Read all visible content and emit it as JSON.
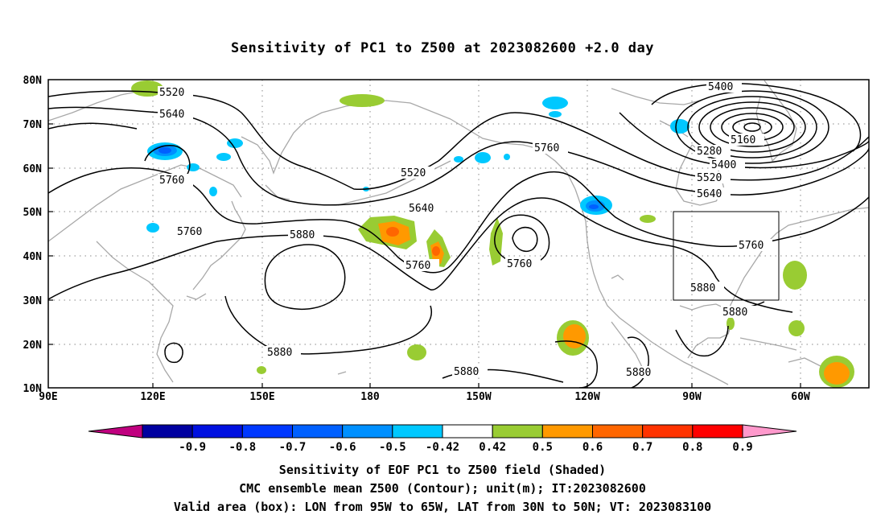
{
  "title": "Sensitivity of PC1 to Z500 at 2023082600 +2.0 day",
  "x_ticks": [
    "90E",
    "120E",
    "150E",
    "180",
    "150W",
    "120W",
    "90W",
    "60W"
  ],
  "y_ticks": [
    "80N",
    "70N",
    "60N",
    "50N",
    "40N",
    "30N",
    "20N",
    "10N"
  ],
  "contour_labels": [
    "5400",
    "5520",
    "5640",
    "5760",
    "5880",
    "5160",
    "5280"
  ],
  "colorbar": {
    "labels": [
      "-0.9",
      "-0.8",
      "-0.7",
      "-0.6",
      "-0.5",
      "-0.42",
      "0.42",
      "0.5",
      "0.6",
      "0.7",
      "0.8",
      "0.9"
    ],
    "colors": [
      "#c0007f",
      "#0000a0",
      "#0010e0",
      "#0038ff",
      "#0060ff",
      "#0090ff",
      "#00c8ff",
      "#ffffff",
      "#99cc33",
      "#ff9900",
      "#ff6600",
      "#ff3300",
      "#ff0000",
      "#ff99cc"
    ]
  },
  "captions": {
    "line1": "Sensitivity of EOF PC1 to Z500 field (Shaded)",
    "line2": "CMC ensemble mean Z500 (Contour); unit(m); IT:2023082600",
    "line3": "Valid area (box): LON from 95W to 65W, LAT from 30N to 50N; VT: 2023083100"
  }
}
